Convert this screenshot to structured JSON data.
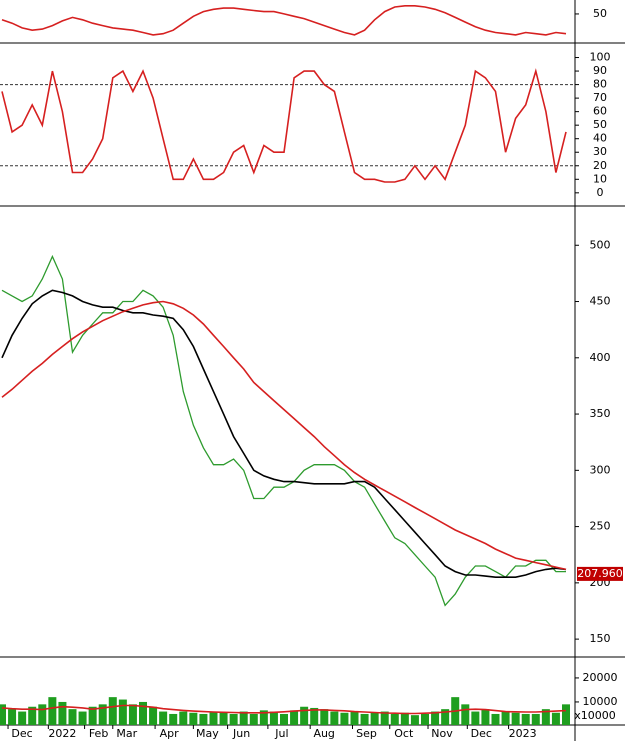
{
  "chart_data": [
    {
      "type": "line",
      "ylim": [
        25,
        62
      ],
      "yticks": [
        50
      ],
      "series": [
        {
          "color": "#d62020",
          "values": [
            45,
            42,
            38,
            36,
            37,
            40,
            44,
            47,
            45,
            42,
            40,
            38,
            37,
            36,
            34,
            32,
            33,
            36,
            42,
            48,
            52,
            54,
            55,
            55,
            54,
            53,
            52,
            52,
            50,
            48,
            46,
            43,
            40,
            37,
            34,
            32,
            36,
            45,
            52,
            56,
            57,
            57,
            56,
            54,
            51,
            47,
            43,
            39,
            36,
            34,
            33,
            32,
            34,
            33,
            32,
            34,
            33
          ]
        }
      ]
    },
    {
      "type": "line",
      "ylim": [
        -9,
        110
      ],
      "yticks": [
        0,
        10,
        20,
        30,
        40,
        50,
        60,
        70,
        80,
        90,
        100
      ],
      "hlines": [
        20,
        80
      ],
      "series": [
        {
          "color": "#d62020",
          "values": [
            75,
            45,
            50,
            65,
            50,
            90,
            60,
            15,
            15,
            25,
            40,
            85,
            90,
            75,
            90,
            70,
            40,
            10,
            10,
            25,
            10,
            10,
            15,
            30,
            35,
            15,
            35,
            30,
            30,
            85,
            90,
            90,
            80,
            75,
            45,
            15,
            10,
            10,
            8,
            8,
            10,
            20,
            10,
            20,
            10,
            30,
            50,
            90,
            85,
            75,
            30,
            55,
            65,
            90,
            60,
            15,
            45
          ]
        }
      ]
    },
    {
      "type": "line",
      "ylim": [
        135,
        534
      ],
      "yticks": [
        150,
        200,
        250,
        300,
        350,
        400,
        450,
        500
      ],
      "last_price": {
        "value": 207.96,
        "label": "207.960"
      },
      "series": [
        {
          "color": "#2e9b2e",
          "values": [
            460,
            455,
            450,
            455,
            470,
            490,
            470,
            405,
            420,
            430,
            440,
            440,
            450,
            450,
            460,
            455,
            445,
            420,
            370,
            340,
            320,
            305,
            305,
            310,
            300,
            275,
            275,
            285,
            285,
            290,
            300,
            305,
            305,
            305,
            300,
            290,
            285,
            270,
            255,
            240,
            235,
            225,
            215,
            205,
            180,
            190,
            205,
            215,
            215,
            210,
            205,
            215,
            215,
            220,
            220,
            210,
            210
          ]
        },
        {
          "color": "#000000",
          "values": [
            400,
            420,
            435,
            448,
            455,
            460,
            458,
            455,
            450,
            447,
            445,
            445,
            442,
            440,
            440,
            438,
            437,
            435,
            425,
            410,
            390,
            370,
            350,
            330,
            315,
            300,
            295,
            292,
            290,
            290,
            289,
            288,
            288,
            288,
            288,
            290,
            290,
            285,
            275,
            265,
            255,
            245,
            235,
            225,
            215,
            210,
            207,
            207,
            206,
            205,
            205,
            205,
            207,
            210,
            212,
            213,
            212
          ]
        },
        {
          "color": "#d62020",
          "values": [
            365,
            372,
            380,
            388,
            395,
            403,
            410,
            417,
            423,
            428,
            433,
            437,
            441,
            444,
            447,
            449,
            450,
            448,
            444,
            438,
            430,
            420,
            410,
            400,
            390,
            378,
            370,
            362,
            354,
            346,
            338,
            330,
            321,
            313,
            305,
            298,
            292,
            287,
            282,
            277,
            272,
            267,
            262,
            257,
            252,
            247,
            243,
            239,
            235,
            230,
            226,
            222,
            220,
            218,
            216,
            214,
            212
          ]
        }
      ]
    },
    {
      "type": "bar",
      "ylim": [
        400,
        28300
      ],
      "yticks": [
        10000,
        20000
      ],
      "unit_label": "x10000",
      "xlim": [
        0,
        56
      ],
      "xticks": [
        {
          "value": 0.6,
          "label": "Dec"
        },
        {
          "value": 4.6,
          "label": "2022"
        },
        {
          "value": 8.2,
          "label": "Feb"
        },
        {
          "value": 11,
          "label": "Mar"
        },
        {
          "value": 15.2,
          "label": "Apr"
        },
        {
          "value": 19,
          "label": "May"
        },
        {
          "value": 22.4,
          "label": "Jun"
        },
        {
          "value": 26.4,
          "label": "Jul"
        },
        {
          "value": 30.6,
          "label": "Aug"
        },
        {
          "value": 34.8,
          "label": "Sep"
        },
        {
          "value": 38.5,
          "label": "Oct"
        },
        {
          "value": 42.3,
          "label": "Nov"
        },
        {
          "value": 46.2,
          "label": "Dec"
        },
        {
          "value": 50.3,
          "label": "2023"
        }
      ],
      "series": [
        {
          "color": "#1f9e1f",
          "values": [
            9000,
            7000,
            6000,
            8000,
            9000,
            12000,
            10000,
            7000,
            6000,
            8000,
            9000,
            12000,
            11000,
            9000,
            10000,
            8000,
            6000,
            5000,
            6000,
            5500,
            5000,
            6000,
            5500,
            5000,
            6000,
            5000,
            6500,
            6000,
            5000,
            6500,
            8000,
            7500,
            7000,
            6000,
            5500,
            6000,
            5000,
            5500,
            6000,
            5000,
            5500,
            4500,
            5000,
            6000,
            7000,
            12000,
            9000,
            6000,
            7000,
            5000,
            6000,
            5500,
            5000,
            5000,
            7000,
            5500,
            9000
          ]
        },
        {
          "color": "#d62020",
          "values": [
            7500,
            7200,
            7000,
            7000,
            6800,
            7500,
            8000,
            7800,
            7500,
            7000,
            7500,
            8000,
            8500,
            8500,
            8200,
            7800,
            7200,
            6800,
            6500,
            6200,
            6000,
            5800,
            5700,
            5600,
            5500,
            5500,
            5500,
            5700,
            5900,
            6200,
            6500,
            6700,
            6700,
            6500,
            6300,
            6000,
            5800,
            5600,
            5400,
            5300,
            5200,
            5200,
            5300,
            5500,
            5800,
            6200,
            6800,
            7000,
            6800,
            6400,
            6000,
            5900,
            5800,
            5800,
            6000,
            6200,
            6400
          ]
        }
      ]
    }
  ]
}
